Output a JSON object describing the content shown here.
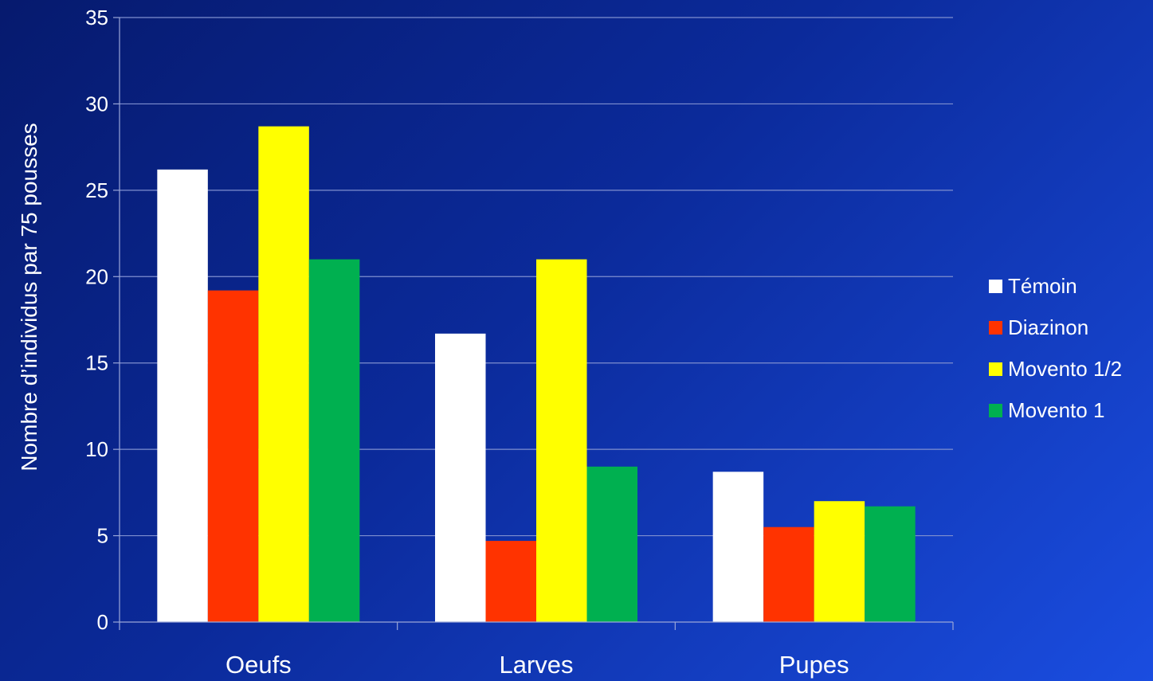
{
  "chart_data": {
    "type": "bar",
    "categories": [
      "Oeufs",
      "Larves",
      "Pupes"
    ],
    "series": [
      {
        "name": "Témoin",
        "color": "#ffffff",
        "values": [
          26.2,
          16.7,
          8.7
        ]
      },
      {
        "name": "Diazinon",
        "color": "#ff3300",
        "values": [
          19.2,
          4.7,
          5.5
        ]
      },
      {
        "name": "Movento 1/2",
        "color": "#ffff00",
        "values": [
          28.7,
          21.0,
          7.0
        ]
      },
      {
        "name": "Movento 1",
        "color": "#00b050",
        "values": [
          21.0,
          9.0,
          6.7
        ]
      }
    ],
    "ylabel": "Nombre d’individus  par 75 pousses",
    "xlabel": "",
    "ylim": [
      0,
      35
    ],
    "yticks": [
      0,
      5,
      10,
      15,
      20,
      25,
      30,
      35
    ],
    "grid": true,
    "legend_position": "right"
  }
}
